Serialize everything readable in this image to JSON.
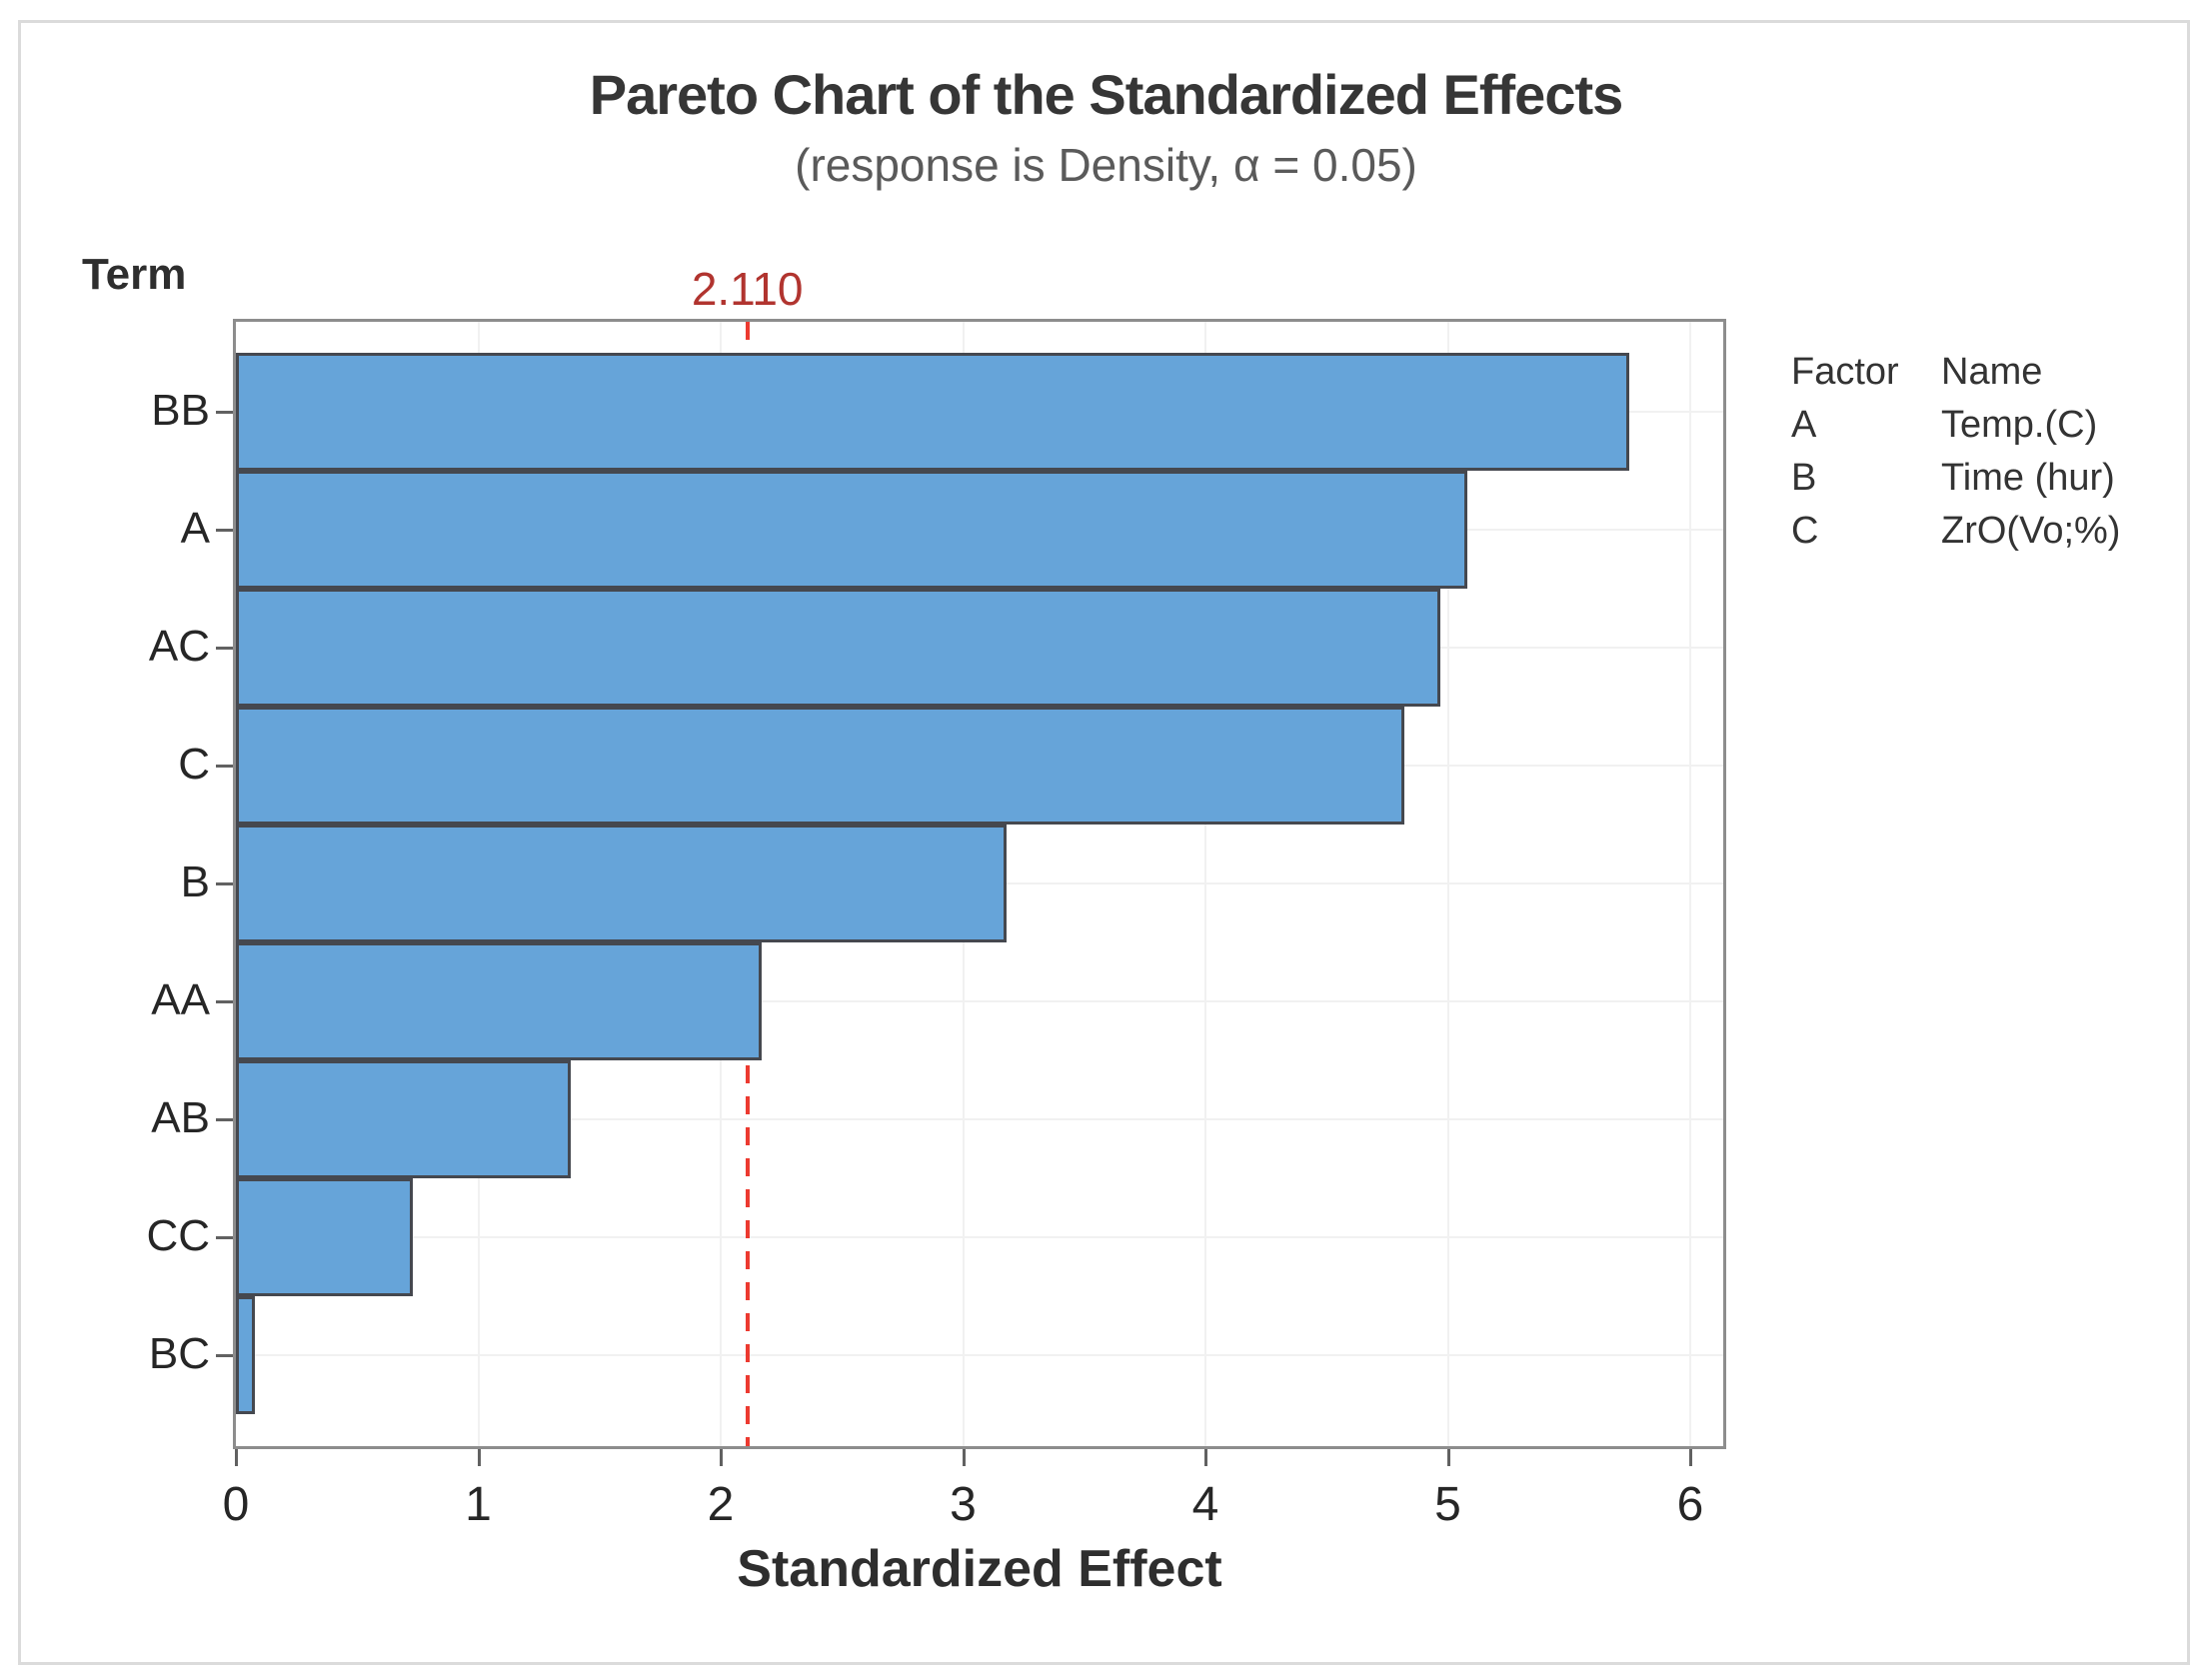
{
  "chart_data": {
    "type": "bar",
    "orientation": "horizontal",
    "title": "Pareto Chart of the Standardized Effects",
    "subtitle": "(response is Density, α = 0.05)",
    "xlabel": "Standardized Effect",
    "ylabel": "Term",
    "categories": [
      "BB",
      "A",
      "AC",
      "C",
      "B",
      "AA",
      "AB",
      "CC",
      "BC"
    ],
    "values": [
      5.75,
      5.08,
      4.97,
      4.82,
      3.18,
      2.17,
      1.38,
      0.73,
      0.08
    ],
    "xticks": [
      0,
      1,
      2,
      3,
      4,
      5,
      6
    ],
    "xlim": [
      0,
      6.16
    ],
    "grid": true,
    "legend_position": "right",
    "reference_line": {
      "value": 2.11,
      "label": "2.110"
    },
    "colors": {
      "bar_fill": "#66a4d9",
      "bar_border": "#45484f",
      "reference_line": "#ec3a30",
      "reference_label": "#b1342f",
      "gridline": "#f1f1f1",
      "frame": "#8d8d8d"
    }
  },
  "legend": {
    "headers": {
      "factor": "Factor",
      "name": "Name"
    },
    "rows": [
      {
        "factor": "A",
        "name": "Temp.(C)"
      },
      {
        "factor": "B",
        "name": "Time (hur)"
      },
      {
        "factor": "C",
        "name": "ZrO(Vo;%)"
      }
    ]
  }
}
